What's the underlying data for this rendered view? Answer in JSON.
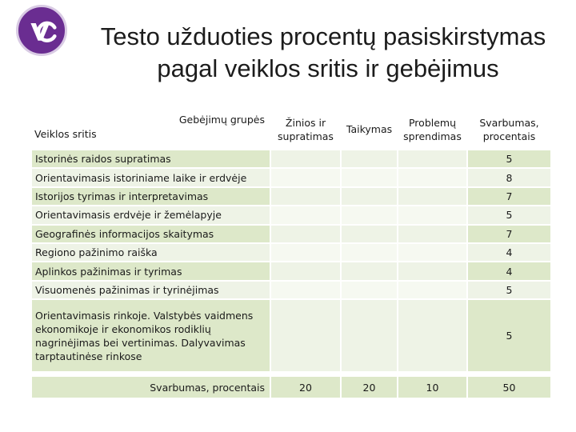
{
  "logo": {
    "icon": "vu-logo-icon",
    "text": "VU",
    "color": "#6a2d91"
  },
  "title": {
    "line1": "Testo užduoties procentų pasiskirstymas",
    "line2": "pagal veiklos sritis ir gebėjimus"
  },
  "table": {
    "corner_top": "Gebėjimų grupės",
    "corner_bottom": "Veiklos sritis",
    "col_headers": [
      "Žinios ir supratimas",
      "Taikymas",
      "Problemų sprendimas",
      "Svarbumas, procentais"
    ],
    "rows": [
      {
        "area": "Istorinės raidos supratimas",
        "weight": "5"
      },
      {
        "area": "Orientavimasis istoriniame laike ir erdvėje",
        "weight": "8"
      },
      {
        "area": "Istorijos tyrimas ir interpretavimas",
        "weight": "7"
      },
      {
        "area": "Orientavimasis erdvėje ir žemėlapyje",
        "weight": "5"
      },
      {
        "area": "Geografinės informacijos skaitymas",
        "weight": "7"
      },
      {
        "area": "Regiono pažinimo raiška",
        "weight": "4"
      },
      {
        "area": "Aplinkos pažinimas ir tyrimas",
        "weight": "4"
      },
      {
        "area": "Visuomenės pažinimas ir tyrinėjimas",
        "weight": "5"
      },
      {
        "area": "Orientavimasis rinkoje. Valstybės vaidmens ekonomikoje ir ekonomikos rodiklių nagrinėjimas bei vertinimas. Dalyvavimas tarptautinėse rinkose",
        "weight": "5"
      }
    ],
    "total_label": "Svarbumas, procentais",
    "totals": [
      "20",
      "20",
      "10",
      "50"
    ],
    "colors": {
      "band_dark": "#dde8c9",
      "band_light": "#eef3e6"
    }
  }
}
